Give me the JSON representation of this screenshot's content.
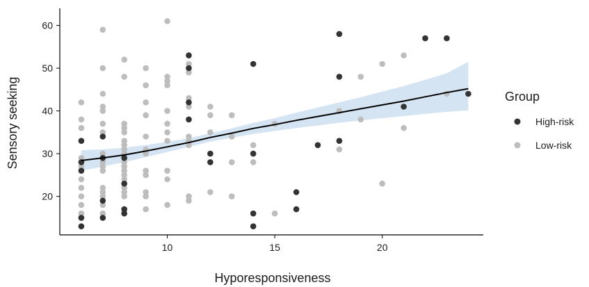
{
  "chart_data": {
    "type": "scatter",
    "title": "",
    "xlabel": "Hyporesponsiveness",
    "ylabel": "Sensory seeking",
    "xlim": [
      5.0,
      24.7
    ],
    "ylim": [
      11.0,
      64.0
    ],
    "xticks": [
      10,
      15,
      20
    ],
    "yticks": [
      20,
      30,
      40,
      50,
      60
    ],
    "grid": false,
    "legend": {
      "title": "Group",
      "placement": "right",
      "entries": [
        {
          "name": "High-risk",
          "color": "#333333"
        },
        {
          "name": "Low-risk",
          "color": "#bdbdbd"
        }
      ]
    },
    "series": [
      {
        "name": "Low-risk",
        "color": "#bdbdbd",
        "points": [
          [
            6,
            42
          ],
          [
            6,
            38
          ],
          [
            6,
            36
          ],
          [
            6,
            29
          ],
          [
            6,
            27
          ],
          [
            6,
            24
          ],
          [
            6,
            22
          ],
          [
            6,
            20
          ],
          [
            6,
            18
          ],
          [
            6,
            16
          ],
          [
            6,
            15
          ],
          [
            7,
            59
          ],
          [
            7,
            50
          ],
          [
            7,
            44
          ],
          [
            7,
            41
          ],
          [
            7,
            40
          ],
          [
            7,
            37
          ],
          [
            7,
            35
          ],
          [
            7,
            30
          ],
          [
            7,
            29
          ],
          [
            7,
            28
          ],
          [
            7,
            27
          ],
          [
            7,
            26
          ],
          [
            7,
            22
          ],
          [
            7,
            21
          ],
          [
            7,
            20
          ],
          [
            7,
            18
          ],
          [
            7,
            16
          ],
          [
            7,
            15
          ],
          [
            8,
            52
          ],
          [
            8,
            48
          ],
          [
            8,
            37
          ],
          [
            8,
            36
          ],
          [
            8,
            35
          ],
          [
            8,
            33
          ],
          [
            8,
            32
          ],
          [
            8,
            31
          ],
          [
            8,
            30
          ],
          [
            8,
            28
          ],
          [
            8,
            27
          ],
          [
            8,
            26
          ],
          [
            8,
            25
          ],
          [
            8,
            24
          ],
          [
            8,
            23
          ],
          [
            8,
            22
          ],
          [
            8,
            21
          ],
          [
            8,
            20
          ],
          [
            8,
            17
          ],
          [
            9,
            50
          ],
          [
            9,
            46
          ],
          [
            9,
            42
          ],
          [
            9,
            39
          ],
          [
            9,
            34
          ],
          [
            9,
            31
          ],
          [
            9,
            30
          ],
          [
            9,
            26
          ],
          [
            9,
            25
          ],
          [
            9,
            21
          ],
          [
            9,
            20
          ],
          [
            9,
            17
          ],
          [
            10,
            61
          ],
          [
            10,
            48
          ],
          [
            10,
            47
          ],
          [
            10,
            46
          ],
          [
            10,
            40
          ],
          [
            10,
            37
          ],
          [
            10,
            35
          ],
          [
            10,
            33
          ],
          [
            10,
            26
          ],
          [
            10,
            24
          ],
          [
            10,
            18
          ],
          [
            11,
            51
          ],
          [
            11,
            49
          ],
          [
            11,
            43
          ],
          [
            11,
            41
          ],
          [
            11,
            38
          ],
          [
            11,
            34
          ],
          [
            11,
            33
          ],
          [
            11,
            32
          ],
          [
            11,
            20
          ],
          [
            11,
            19
          ],
          [
            12,
            41
          ],
          [
            12,
            39
          ],
          [
            12,
            35
          ],
          [
            12,
            21
          ],
          [
            13,
            39
          ],
          [
            13,
            34
          ],
          [
            13,
            28
          ],
          [
            13,
            20
          ],
          [
            14,
            32
          ],
          [
            14,
            28
          ],
          [
            15,
            37
          ],
          [
            15,
            16
          ],
          [
            18,
            40
          ],
          [
            18,
            31
          ],
          [
            19,
            48
          ],
          [
            19,
            38
          ],
          [
            20,
            51
          ],
          [
            20,
            23
          ],
          [
            21,
            53
          ],
          [
            21,
            41
          ],
          [
            21,
            36
          ],
          [
            23,
            44
          ]
        ]
      },
      {
        "name": "High-risk",
        "color": "#333333",
        "points": [
          [
            6,
            33
          ],
          [
            6,
            28
          ],
          [
            6,
            26
          ],
          [
            6,
            15
          ],
          [
            6,
            13
          ],
          [
            7,
            34
          ],
          [
            7,
            29
          ],
          [
            7,
            19
          ],
          [
            7,
            15
          ],
          [
            8,
            29
          ],
          [
            8,
            23
          ],
          [
            8,
            17
          ],
          [
            8,
            16
          ],
          [
            11,
            53
          ],
          [
            11,
            50
          ],
          [
            11,
            42
          ],
          [
            11,
            38
          ],
          [
            12,
            30
          ],
          [
            12,
            28
          ],
          [
            14,
            51
          ],
          [
            14,
            30
          ],
          [
            14,
            16
          ],
          [
            14,
            13
          ],
          [
            16,
            21
          ],
          [
            16,
            17
          ],
          [
            17,
            32
          ],
          [
            18,
            58
          ],
          [
            18,
            48
          ],
          [
            18,
            33
          ],
          [
            21,
            41
          ],
          [
            22,
            57
          ],
          [
            23,
            57
          ],
          [
            24,
            44
          ]
        ]
      }
    ],
    "trend_line": {
      "x": [
        6,
        7,
        8,
        9,
        10,
        11,
        12,
        13,
        14,
        15,
        16,
        17,
        18,
        19,
        20,
        21,
        22,
        23,
        24
      ],
      "y": [
        28.4,
        29.0,
        29.7,
        30.6,
        31.6,
        32.6,
        33.8,
        34.8,
        35.9,
        36.8,
        37.8,
        38.7,
        39.6,
        40.5,
        41.4,
        42.3,
        43.3,
        44.3,
        45.2
      ],
      "ci_lower": [
        26.0,
        27.0,
        28.0,
        29.2,
        30.4,
        31.6,
        32.8,
        33.7,
        34.6,
        35.3,
        36.0,
        36.6,
        37.2,
        37.8,
        38.3,
        38.8,
        39.3,
        39.8,
        40.1
      ],
      "ci_upper": [
        30.8,
        31.0,
        31.4,
        32.0,
        32.8,
        33.6,
        34.8,
        35.9,
        37.2,
        38.3,
        39.6,
        40.8,
        42.0,
        43.2,
        44.5,
        45.8,
        47.3,
        48.8,
        51.5
      ],
      "color": "#000000",
      "ci_color": "#c6dbef"
    }
  }
}
